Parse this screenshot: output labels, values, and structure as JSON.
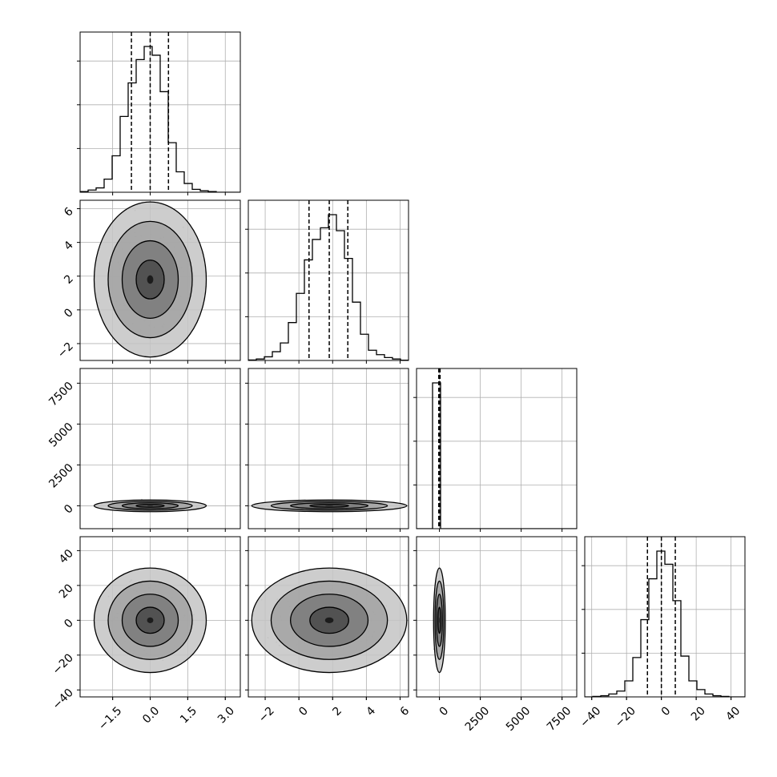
{
  "chart_data": {
    "type": "corner",
    "grid": true,
    "parameters": [
      {
        "range": [
          -2.8,
          3.6
        ],
        "ticks": [
          -1.5,
          0.0,
          1.5,
          3.0
        ],
        "tick_labels": [
          "−1.5",
          "0.0",
          "1.5",
          "3.0"
        ],
        "quantiles": [
          -0.75,
          0.0,
          0.73
        ],
        "hist_edges": [
          -2.8,
          -2.48,
          -2.16,
          -1.84,
          -1.52,
          -1.2,
          -0.88,
          -0.56,
          -0.24,
          0.08,
          0.4,
          0.72,
          1.04,
          1.36,
          1.68,
          2.0,
          2.32,
          2.64,
          2.96,
          3.28,
          3.6
        ],
        "hist_counts": [
          0.5,
          1.5,
          3,
          9,
          25,
          52,
          75,
          91,
          100,
          94,
          69,
          34,
          14,
          6,
          2,
          1,
          0.5,
          0,
          0,
          0
        ]
      },
      {
        "range": [
          -3.0,
          6.5
        ],
        "ticks": [
          -2,
          0,
          2,
          4,
          6
        ],
        "tick_labels": [
          "−2",
          "0",
          "2",
          "4",
          "6"
        ],
        "quantiles": [
          0.6,
          1.8,
          2.9
        ],
        "hist_edges": [
          -3.0,
          -2.525,
          -2.05,
          -1.575,
          -1.1,
          -0.625,
          -0.15,
          0.325,
          0.8,
          1.275,
          1.75,
          2.225,
          2.7,
          3.175,
          3.65,
          4.125,
          4.6,
          5.075,
          5.55,
          6.025,
          6.5
        ],
        "hist_counts": [
          0.3,
          1,
          2.5,
          6,
          12,
          26,
          46,
          69,
          83,
          91,
          100,
          89,
          70,
          40,
          18,
          7,
          4,
          2,
          1,
          0.2
        ]
      },
      {
        "range": [
          -1400,
          8400
        ],
        "ticks": [
          0,
          2500,
          5000,
          7500
        ],
        "tick_labels": [
          "0",
          "2500",
          "5000",
          "7500"
        ],
        "quantiles": [
          -40,
          0,
          40
        ],
        "hist_edges": [
          -1400,
          -910,
          -420,
          70,
          560,
          1050,
          1540,
          2030,
          2520,
          3010,
          3500,
          3990,
          4480,
          4970,
          5460,
          5950,
          6440,
          6930,
          7420,
          7910,
          8400
        ],
        "hist_counts": [
          0,
          0,
          100,
          0,
          0,
          0,
          0,
          0,
          0,
          0,
          0,
          0,
          0,
          0,
          0,
          0,
          0,
          0,
          0,
          0
        ]
      },
      {
        "range": [
          -44,
          48
        ],
        "ticks": [
          -40,
          -20,
          0,
          20,
          40
        ],
        "tick_labels": [
          "−40",
          "−20",
          "0",
          "20",
          "40"
        ],
        "quantiles": [
          -8,
          0,
          8
        ],
        "hist_edges": [
          -44,
          -39.4,
          -34.8,
          -30.2,
          -25.6,
          -21.0,
          -16.4,
          -11.8,
          -7.2,
          -2.6,
          2.0,
          6.6,
          11.2,
          15.8,
          20.4,
          25.0,
          29.6,
          34.2,
          38.8,
          43.4,
          48
        ],
        "hist_counts": [
          0,
          0.3,
          0.8,
          2,
          4,
          11,
          27,
          53,
          81,
          100,
          91,
          66,
          28,
          11,
          5,
          2,
          0.8,
          0.3,
          0,
          0
        ]
      }
    ],
    "contour_means": [
      0.0,
      1.8,
      0,
      0
    ],
    "contour_stds": [
      0.56,
      1.15,
      90,
      7.5
    ]
  }
}
